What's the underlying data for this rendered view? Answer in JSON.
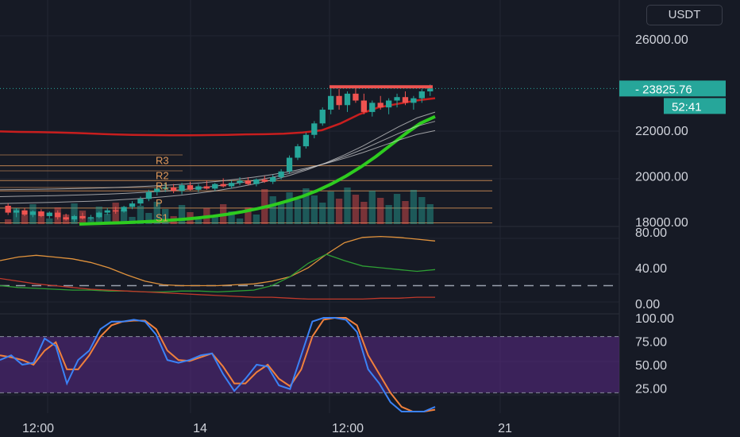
{
  "currency": "USDT",
  "colors": {
    "background": "#161a25",
    "up": "#26a69a",
    "down": "#ef5350",
    "ema_fast": "#2ecc1f",
    "ema_slow": "#c81e1e",
    "pivot_lines": "#e39a5a",
    "stoch_k": "#3b82f6",
    "stoch_d": "#f0803c",
    "stoch_band": "#5b2a86"
  },
  "price_axis": {
    "ticks": [
      "26000.00",
      "22000.00",
      "20000.00",
      "18000.00"
    ],
    "last_price": "23825.76",
    "countdown": "52:41"
  },
  "time_axis": {
    "ticks": [
      "12:00",
      "14",
      "12:00",
      "21"
    ]
  },
  "pivot_labels": [
    "R3",
    "R2",
    "R1",
    "P",
    "S1"
  ],
  "pivot_levels": {
    "R3": 20450,
    "R2": 19800,
    "R1": 19350,
    "P": 18600,
    "S1": 17950
  },
  "dmi_axis": {
    "ticks": [
      "80.00",
      "40.00",
      "0.00"
    ],
    "reference": 20
  },
  "stoch_axis": {
    "ticks": [
      "100.00",
      "75.00",
      "50.00",
      "25.00"
    ],
    "band": [
      20,
      80
    ]
  },
  "chart_data": {
    "type": "candlestick",
    "price_ylim": [
      17900,
      27000
    ],
    "candles_ohlc": [
      [
        18700,
        18800,
        18300,
        18400
      ],
      [
        18400,
        18600,
        18200,
        18500
      ],
      [
        18500,
        18600,
        18250,
        18300
      ],
      [
        18300,
        18500,
        18200,
        18450
      ],
      [
        18450,
        18550,
        18200,
        18250
      ],
      [
        18250,
        18450,
        18150,
        18400
      ],
      [
        18400,
        18500,
        18100,
        18200
      ],
      [
        18200,
        18350,
        18050,
        18100
      ],
      [
        18100,
        18300,
        18000,
        18250
      ],
      [
        18250,
        18400,
        18100,
        18150
      ],
      [
        18150,
        18300,
        18050,
        18200
      ],
      [
        18200,
        18450,
        18150,
        18400
      ],
      [
        18400,
        18600,
        18300,
        18500
      ],
      [
        18500,
        18650,
        18350,
        18450
      ],
      [
        18450,
        18700,
        18400,
        18650
      ],
      [
        18650,
        18900,
        18550,
        18800
      ],
      [
        18800,
        19100,
        18700,
        19000
      ],
      [
        19000,
        19400,
        18900,
        19300
      ],
      [
        19300,
        19600,
        19150,
        19450
      ],
      [
        19450,
        19700,
        19300,
        19500
      ],
      [
        19500,
        19650,
        19250,
        19350
      ],
      [
        19350,
        19700,
        19200,
        19600
      ],
      [
        19600,
        19750,
        19350,
        19400
      ],
      [
        19400,
        19650,
        19300,
        19550
      ],
      [
        19550,
        19800,
        19400,
        19450
      ],
      [
        19450,
        19700,
        19350,
        19650
      ],
      [
        19650,
        19900,
        19500,
        19550
      ],
      [
        19550,
        19800,
        19450,
        19700
      ],
      [
        19700,
        19950,
        19600,
        19800
      ],
      [
        19800,
        19950,
        19600,
        19650
      ],
      [
        19650,
        19900,
        19550,
        19850
      ],
      [
        19850,
        20000,
        19700,
        19750
      ],
      [
        19750,
        20050,
        19650,
        19950
      ],
      [
        19950,
        20300,
        19850,
        20200
      ],
      [
        20200,
        20900,
        20100,
        20800
      ],
      [
        20800,
        21400,
        20700,
        21300
      ],
      [
        21300,
        21900,
        21200,
        21800
      ],
      [
        21800,
        22400,
        21650,
        22300
      ],
      [
        22300,
        23000,
        22200,
        22900
      ],
      [
        22900,
        23900,
        22700,
        23500
      ],
      [
        23500,
        23800,
        22900,
        23100
      ],
      [
        23100,
        23700,
        22800,
        23600
      ],
      [
        23600,
        23900,
        23200,
        23300
      ],
      [
        23300,
        23600,
        22700,
        22800
      ],
      [
        22800,
        23300,
        22600,
        23200
      ],
      [
        23200,
        23500,
        22900,
        23000
      ],
      [
        23000,
        23400,
        22700,
        23300
      ],
      [
        23300,
        23600,
        23000,
        23450
      ],
      [
        23450,
        23700,
        23100,
        23200
      ],
      [
        23200,
        23500,
        22900,
        23400
      ],
      [
        23400,
        23800,
        23200,
        23700
      ],
      [
        23700,
        24000,
        23500,
        23825.76
      ]
    ],
    "ema_fast": [
      17900,
      17920,
      17940,
      17960,
      17990,
      18020,
      18060,
      18110,
      18170,
      18240,
      18330,
      18440,
      18570,
      18720,
      18900,
      19100,
      19350,
      19650,
      20000,
      20400,
      20850,
      21350,
      21850,
      22300,
      22600
    ],
    "ema_slow": [
      21950,
      21930,
      21920,
      21900,
      21880,
      21850,
      21820,
      21800,
      21790,
      21780,
      21780,
      21790,
      21800,
      21820,
      21830,
      21850,
      21900,
      22000,
      22300,
      22700,
      23000,
      23150,
      23300,
      23400
    ],
    "dmi": {
      "plus_di": [
        20,
        18,
        17,
        16,
        15,
        15,
        14,
        14,
        13,
        13,
        14,
        14,
        13,
        14,
        15,
        20,
        30,
        45,
        55,
        48,
        42,
        40,
        38,
        36,
        38
      ],
      "minus_di": [
        28,
        25,
        22,
        20,
        18,
        16,
        15,
        14,
        13,
        12,
        11,
        10,
        9,
        8,
        7,
        7,
        6,
        5,
        5,
        5,
        5,
        6,
        6,
        7,
        7
      ],
      "adx": [
        48,
        52,
        54,
        52,
        50,
        46,
        40,
        32,
        25,
        21,
        20,
        20,
        20,
        21,
        22,
        25,
        30,
        40,
        55,
        68,
        74,
        75,
        74,
        72,
        70
      ]
    },
    "stoch_rsi": {
      "k": [
        55,
        60,
        50,
        52,
        78,
        70,
        30,
        55,
        65,
        88,
        96,
        96,
        98,
        96,
        82,
        55,
        52,
        55,
        60,
        62,
        40,
        22,
        35,
        50,
        48,
        28,
        24,
        60,
        96,
        100,
        100,
        98,
        85,
        45,
        30,
        10,
        0,
        0,
        0,
        5
      ],
      "d": [
        60,
        58,
        55,
        50,
        65,
        74,
        45,
        45,
        60,
        80,
        92,
        96,
        97,
        97,
        88,
        65,
        55,
        54,
        58,
        62,
        48,
        30,
        30,
        42,
        50,
        35,
        27,
        45,
        80,
        98,
        100,
        100,
        92,
        60,
        40,
        20,
        5,
        0,
        0,
        2
      ]
    }
  }
}
